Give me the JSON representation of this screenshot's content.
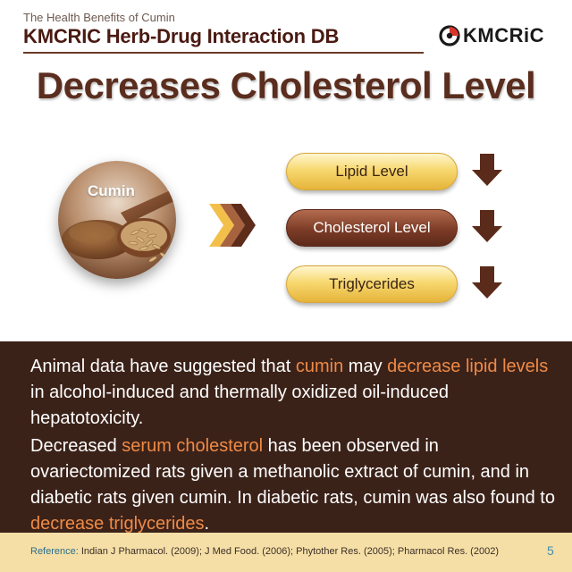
{
  "header": {
    "subtitle": "The Health Benefits of Cumin",
    "title": "KMCRIC Herb-Drug Interaction DB",
    "logo_text": "KMCRiC",
    "logo_icon": "kmcric-logo-icon"
  },
  "main_title": "Decreases Cholesterol Level",
  "herb": {
    "label": "Cumin",
    "image": "cumin-spoon-photo"
  },
  "effects": [
    {
      "label": "Lipid Level",
      "direction": "decrease",
      "style": "gold"
    },
    {
      "label": "Cholesterol Level",
      "direction": "decrease",
      "style": "brown"
    },
    {
      "label": "Triglycerides",
      "direction": "decrease",
      "style": "gold"
    }
  ],
  "info": {
    "p1": {
      "t1": "Animal data have suggested that ",
      "h1": "cumin",
      "t2": " may ",
      "h2": "decrease lipid levels",
      "t3": " in alcohol-induced and thermally oxidized oil-induced hepatotoxicity."
    },
    "p2": {
      "t1": "Decreased ",
      "h1": "serum cholesterol",
      "t2": " has been observed in ovariectomized rats given a methanolic extract of cumin, and in diabetic rats given cumin. In diabetic rats, cumin was also found to ",
      "h2": "decrease triglycerides",
      "t3": "."
    }
  },
  "reference": {
    "label": "Reference:",
    "text": " Indian J Pharmacol. (2009); J Med Food. (2006); Phytother Res. (2005); Pharmacol Res. (2002)"
  },
  "page_number": "5",
  "colors": {
    "brand_brown": "#5a2d1e",
    "panel_bg": "#3b2219",
    "highlight": "#f08a45",
    "reference_bg": "#f6dfa6",
    "pill_gold": "#f7d870",
    "pill_brown": "#7c3c27"
  }
}
